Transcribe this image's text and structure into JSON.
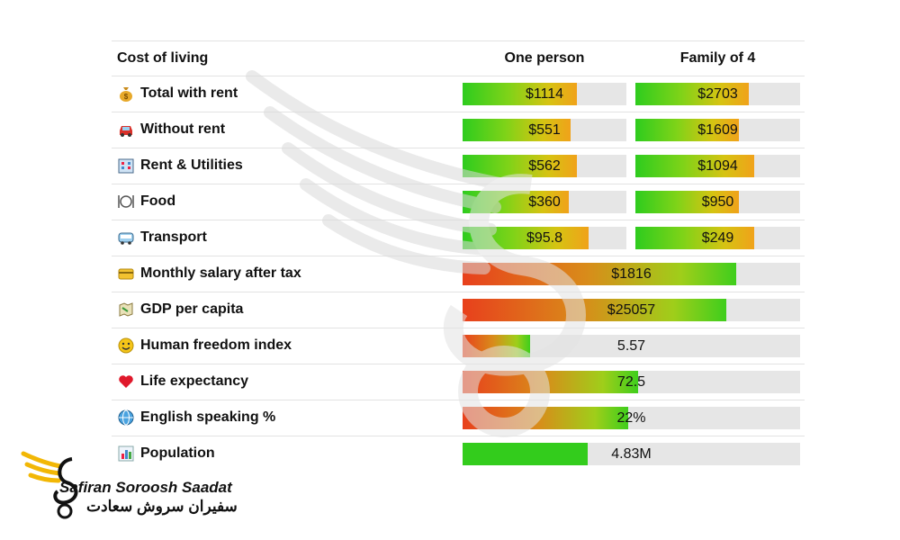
{
  "header": {
    "label": "Cost of living",
    "col1": "One person",
    "col2": "Family of 4"
  },
  "rows": [
    {
      "icon": "money-bag-icon",
      "label": "Total with rent",
      "v1": "$1114",
      "f1": 0.7,
      "v2": "$2703",
      "f2": 0.69
    },
    {
      "icon": "car-icon",
      "label": "Without rent",
      "v1": "$551",
      "f1": 0.66,
      "v2": "$1609",
      "f2": 0.63
    },
    {
      "icon": "apartment-icon",
      "label": "Rent & Utilities",
      "v1": "$562",
      "f1": 0.7,
      "v2": "$1094",
      "f2": 0.72
    },
    {
      "icon": "plate-icon",
      "label": "Food",
      "v1": "$360",
      "f1": 0.65,
      "v2": "$950",
      "f2": 0.63
    },
    {
      "icon": "bus-icon",
      "label": "Transport",
      "v1": "$95.8",
      "f1": 0.77,
      "v2": "$249",
      "f2": 0.72
    }
  ],
  "wide_rows": [
    {
      "icon": "credit-card-icon",
      "label": "Monthly salary after tax",
      "value": "$1816",
      "fill": 0.81,
      "style": "rg"
    },
    {
      "icon": "map-icon",
      "label": "GDP per capita",
      "value": "$25057",
      "fill": 0.78,
      "style": "rg"
    },
    {
      "icon": "smile-icon",
      "label": "Human freedom index",
      "value": "5.57",
      "fill": 0.2,
      "style": "rg"
    },
    {
      "icon": "heart-icon",
      "label": "Life expectancy",
      "value": "72.5",
      "fill": 0.52,
      "style": "rg"
    },
    {
      "icon": "globe-icon",
      "label": "English speaking %",
      "value": "22%",
      "fill": 0.49,
      "style": "rg"
    },
    {
      "icon": "bar-chart-icon",
      "label": "Population",
      "value": "4.83M",
      "fill": 0.37,
      "style": "green"
    }
  ],
  "logo": {
    "name_en": "Safiran Soroosh Saadat",
    "name_fa": "سفیران سروش سعادت"
  },
  "colors": {
    "accent_gold": "#f2b705",
    "track": "#e6e6e6",
    "green": "#33cc1c",
    "red": "#e8401c"
  }
}
